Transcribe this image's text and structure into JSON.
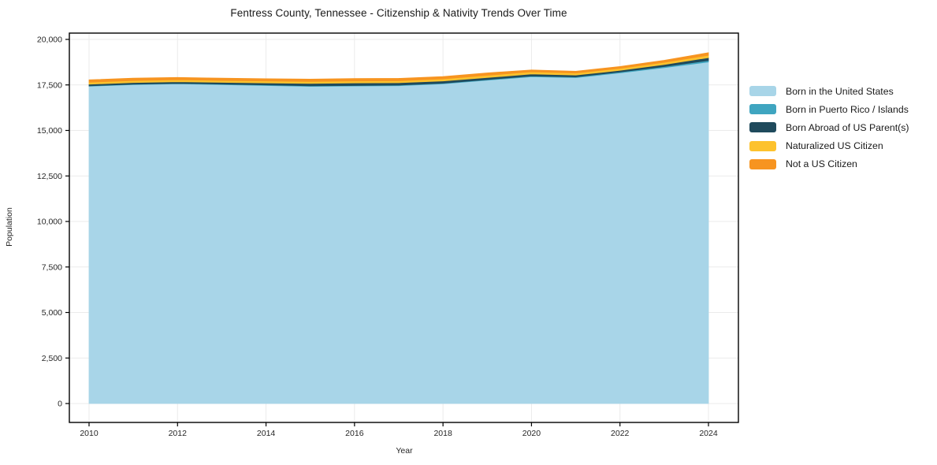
{
  "chart_data": {
    "type": "area",
    "stacked": true,
    "title": "Fentress County, Tennessee - Citizenship & Nativity Trends Over Time",
    "xlabel": "Year",
    "ylabel": "Population",
    "x": [
      2010,
      2011,
      2012,
      2013,
      2014,
      2015,
      2016,
      2017,
      2018,
      2019,
      2020,
      2021,
      2022,
      2023,
      2024
    ],
    "series": [
      {
        "name": "Born in the United States",
        "color": "#A8D5E8",
        "values": [
          17430,
          17520,
          17560,
          17520,
          17470,
          17420,
          17440,
          17460,
          17560,
          17760,
          17950,
          17900,
          18160,
          18450,
          18760
        ]
      },
      {
        "name": "Born in Puerto Rico / Islands",
        "color": "#3FA5C0",
        "values": [
          20,
          20,
          25,
          25,
          30,
          30,
          30,
          30,
          35,
          35,
          40,
          40,
          50,
          60,
          80
        ]
      },
      {
        "name": "Born Abroad of US Parent(s)",
        "color": "#1F4A5C",
        "values": [
          90,
          90,
          90,
          95,
          110,
          130,
          140,
          130,
          120,
          110,
          110,
          100,
          90,
          110,
          160
        ]
      },
      {
        "name": "Naturalized US Citizen",
        "color": "#FDC22D",
        "values": [
          110,
          110,
          110,
          105,
          105,
          110,
          110,
          110,
          115,
          120,
          120,
          110,
          110,
          120,
          130
        ]
      },
      {
        "name": "Not a US Citizen",
        "color": "#F79420",
        "values": [
          130,
          130,
          125,
          125,
          125,
          130,
          130,
          130,
          130,
          135,
          100,
          100,
          100,
          110,
          140
        ]
      }
    ],
    "ylim": [
      0,
      20000
    ],
    "yticks": [
      0,
      2500,
      5000,
      7500,
      10000,
      12500,
      15000,
      17500,
      20000
    ],
    "xticks": [
      2010,
      2012,
      2014,
      2016,
      2018,
      2020,
      2022,
      2024
    ],
    "grid": true,
    "legend_position": "right",
    "grid_color": "#ebebeb",
    "spine_color": "#000000",
    "tick_text_color": "#262626"
  }
}
